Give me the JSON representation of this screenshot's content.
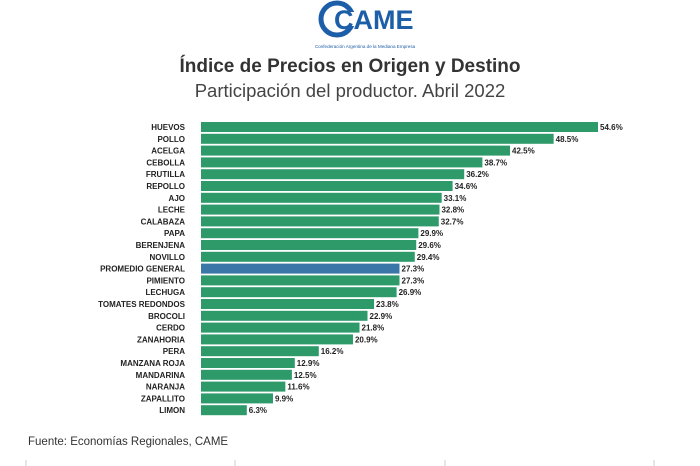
{
  "logo": {
    "wordmark": "CAME",
    "tagline": "Confederación Argentina de la Mediana Empresa"
  },
  "header": {
    "title": "Índice de Precios en Origen y Destino",
    "subtitle": "Participación del productor. Abril 2022"
  },
  "footer": {
    "source": "Fuente: Economías Regionales, CAME"
  },
  "colors": {
    "bar": "#2e9a6a",
    "highlight": "#3a77a8",
    "logo_blue": "#1c5ea8"
  },
  "chart_data": {
    "type": "bar",
    "orientation": "horizontal",
    "value_suffix": "%",
    "highlight_category": "PROMEDIO GENERAL",
    "categories": [
      "HUEVOS",
      "POLLO",
      "ACELGA",
      "CEBOLLA",
      "FRUTILLA",
      "REPOLLO",
      "AJO",
      "LECHE",
      "CALABAZA",
      "PAPA",
      "BERENJENA",
      "NOVILLO",
      "PROMEDIO GENERAL",
      "PIMIENTO",
      "LECHUGA",
      "TOMATES REDONDOS",
      "BROCOLI",
      "CERDO",
      "ZANAHORIA",
      "PERA",
      "MANZANA ROJA",
      "MANDARINA",
      "NARANJA",
      "ZAPALLITO",
      "LIMON"
    ],
    "values": [
      54.6,
      48.5,
      42.5,
      38.7,
      36.2,
      34.6,
      33.1,
      32.8,
      32.7,
      29.9,
      29.6,
      29.4,
      27.3,
      27.3,
      26.9,
      23.8,
      22.9,
      21.8,
      20.9,
      16.2,
      12.9,
      12.5,
      11.6,
      9.9,
      6.3
    ],
    "labels": [
      "54.6%",
      "48.5%",
      "42.5%",
      "38.7%",
      "36.2%",
      "34.6%",
      "33.1%",
      "32.8%",
      "32.7%",
      "29.9%",
      "29.6%",
      "29.4%",
      "27.3%",
      "27.3%",
      "26.9%",
      "23.8%",
      "22.9%",
      "21.8%",
      "20.9%",
      "16.2%",
      "12.9%",
      "12.5%",
      "11.6%",
      "9.9%",
      "6.3%"
    ]
  }
}
